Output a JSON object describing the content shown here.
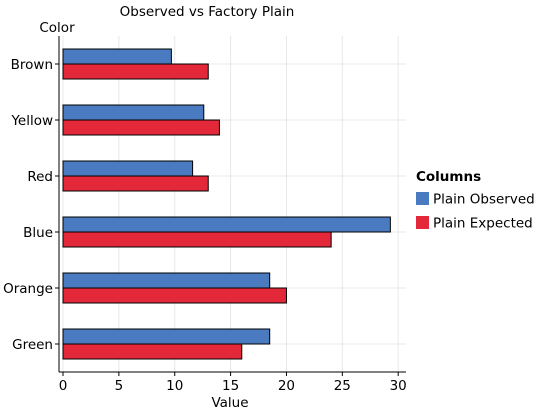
{
  "chart_data": {
    "type": "bar",
    "orientation": "horizontal",
    "title": "Observed vs Factory Plain",
    "xlabel": "Value",
    "ylabel": "Color",
    "categories": [
      "Brown",
      "Yellow",
      "Red",
      "Blue",
      "Orange",
      "Green"
    ],
    "series": [
      {
        "name": "Plain Observed",
        "color": "#4a7bc0",
        "values": [
          9.7,
          12.6,
          11.6,
          29.3,
          18.5,
          18.5
        ]
      },
      {
        "name": "Plain Expected",
        "color": "#e3283a",
        "values": [
          13.0,
          14.0,
          13.0,
          24.0,
          20.0,
          16.0
        ]
      }
    ],
    "xlim": [
      0,
      30.7
    ],
    "xticks": [
      0,
      5,
      10,
      15,
      20,
      25,
      30
    ],
    "grid": true,
    "legend": {
      "title": "Columns",
      "position": "right"
    }
  }
}
